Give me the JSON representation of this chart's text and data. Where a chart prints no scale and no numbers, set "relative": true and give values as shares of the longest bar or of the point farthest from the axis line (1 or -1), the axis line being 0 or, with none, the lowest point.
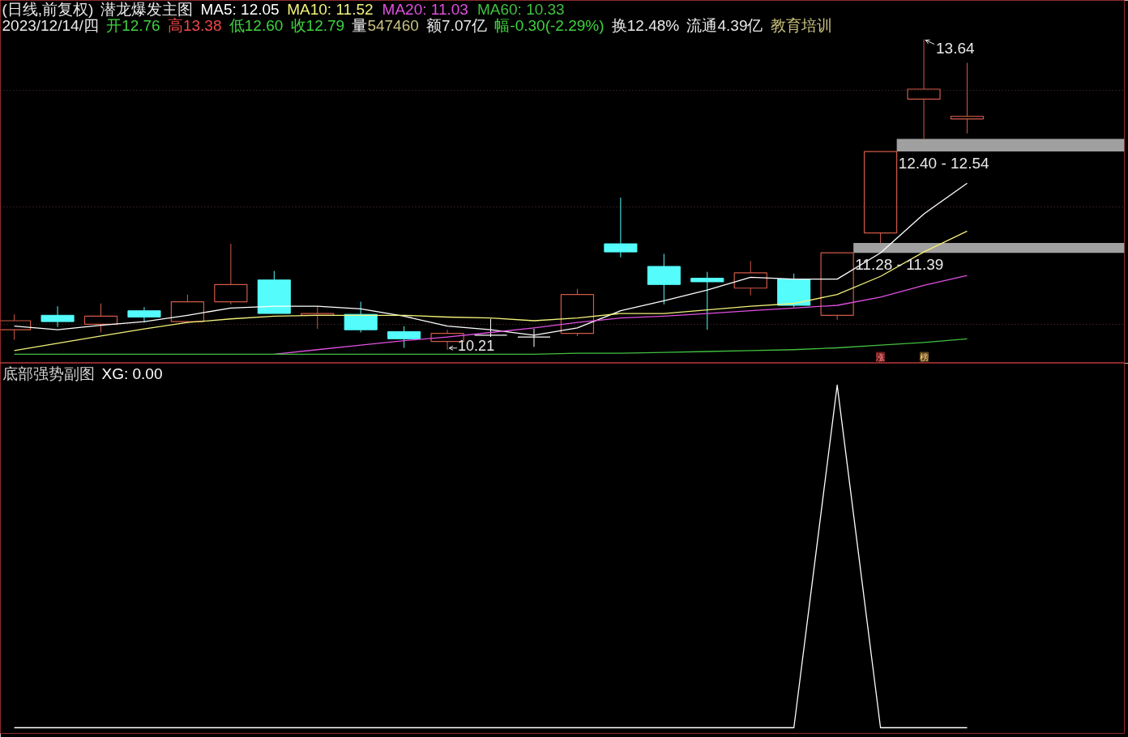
{
  "chart_data": [
    {
      "type": "candlestick",
      "title": "(日线,前复权)",
      "legend_title": "潜龙爆发主图",
      "subtitle": "2023/12/14/四 开12.76 高13.38 低12.60 收12.79 量547460 额7.07亿 幅-0.30(-2.29%) 换12.48% 流通4.39亿 教育培训",
      "categories": [
        null,
        null,
        null,
        null,
        null,
        null,
        null,
        null,
        null,
        null,
        null,
        null,
        null,
        null,
        null,
        null,
        null,
        null,
        null,
        null,
        null,
        null,
        null
      ],
      "ohlc": [
        [
          10.43,
          10.6,
          10.32,
          10.53
        ],
        [
          10.59,
          10.69,
          10.46,
          10.52
        ],
        [
          10.49,
          10.72,
          10.4,
          10.58
        ],
        [
          10.64,
          10.68,
          10.51,
          10.57
        ],
        [
          10.52,
          10.82,
          10.5,
          10.74
        ],
        [
          10.74,
          11.38,
          10.71,
          10.93
        ],
        [
          10.98,
          11.08,
          10.61,
          10.61
        ],
        [
          10.59,
          10.69,
          10.44,
          10.61
        ],
        [
          10.6,
          10.74,
          10.4,
          10.43
        ],
        [
          10.41,
          10.47,
          10.23,
          10.33
        ],
        [
          10.3,
          10.43,
          10.21,
          10.39
        ],
        [
          10.37,
          10.55,
          10.35,
          10.37
        ],
        [
          10.35,
          10.44,
          10.24,
          10.35
        ],
        [
          10.39,
          10.88,
          10.36,
          10.82
        ],
        [
          11.38,
          11.89,
          11.23,
          11.29
        ],
        [
          11.13,
          11.27,
          10.71,
          10.93
        ],
        [
          11.0,
          11.07,
          10.43,
          10.96
        ],
        [
          10.89,
          11.19,
          10.81,
          11.06
        ],
        [
          10.99,
          11.05,
          10.68,
          10.7
        ],
        [
          10.59,
          11.28,
          10.54,
          11.28
        ],
        [
          11.5,
          12.4,
          11.39,
          12.4
        ],
        [
          12.98,
          13.64,
          12.54,
          13.09
        ],
        [
          12.76,
          13.38,
          12.6,
          12.79
        ]
      ],
      "colors": [
        "#d05a48",
        "#54fcfc",
        "#d05a48",
        "#54fcfc",
        "#d05a48",
        "#d05a48",
        "#54fcfc",
        "#d05a48",
        "#54fcfc",
        "#54fcfc",
        "#d05a48",
        "#ffffff",
        "#ffffff",
        "#d05a48",
        "#54fcfc",
        "#54fcfc",
        "#54fcfc",
        "#d05a48",
        "#54fcfc",
        "#d05a48",
        "#d05a48",
        "#d05a48",
        "#d05a48"
      ],
      "series": [
        {
          "name": "MA5: 12.05",
          "type": "line",
          "color": "#ffffff",
          "values": [
            10.47,
            10.43,
            10.48,
            10.52,
            10.59,
            10.67,
            10.69,
            10.69,
            10.66,
            10.58,
            10.47,
            10.43,
            10.37,
            10.45,
            10.64,
            10.75,
            10.87,
            11.01,
            10.99,
            10.99,
            11.28,
            11.71,
            12.05
          ]
        },
        {
          "name": "MA10: 11.52",
          "type": "line",
          "color": "#f2f27a",
          "values": [
            10.2,
            10.28,
            10.36,
            10.44,
            10.51,
            10.55,
            10.58,
            10.59,
            10.59,
            10.59,
            10.57,
            10.56,
            10.53,
            10.56,
            10.61,
            10.61,
            10.65,
            10.69,
            10.72,
            10.82,
            11.02,
            11.29,
            11.52
          ]
        },
        {
          "name": "MA20: 11.03",
          "type": "line",
          "color": "#e050e0",
          "values": [
            null,
            null,
            null,
            null,
            null,
            null,
            10.16,
            10.21,
            10.26,
            10.31,
            10.35,
            10.4,
            10.45,
            10.51,
            10.56,
            10.58,
            10.61,
            10.64,
            10.67,
            10.7,
            10.79,
            10.92,
            11.03
          ]
        },
        {
          "name": "MA60: 10.33",
          "type": "line",
          "color": "#40c040",
          "values": [
            10.16,
            10.16,
            10.16,
            10.16,
            10.16,
            10.16,
            10.16,
            10.16,
            10.16,
            10.16,
            10.16,
            10.16,
            10.16,
            10.17,
            10.17,
            10.18,
            10.19,
            10.2,
            10.21,
            10.23,
            10.26,
            10.29,
            10.33
          ]
        }
      ],
      "ylim": [
        10.06,
        14.07
      ],
      "yticks": [
        {
          "value": 13.08,
          "label": null
        },
        {
          "value": 11.79,
          "label": null
        },
        {
          "value": 10.49,
          "label": null
        }
      ],
      "tick_labels": false,
      "grid": "y",
      "legend": "top",
      "bands": [
        {
          "axis": "y",
          "from": 12.4,
          "to": 12.54,
          "label": "12.40 - 12.54",
          "color": "#a0a0a0"
        },
        {
          "axis": "y",
          "from": 11.28,
          "to": 11.39,
          "label": "11.28 - 11.39",
          "color": "#a0a0a0"
        }
      ],
      "annotations": [
        "13.64",
        "10.21",
        "涨",
        "榜"
      ]
    },
    {
      "type": "line",
      "legend_title": "底部强势副图",
      "relative": true,
      "tick_labels": false,
      "legend": "top left",
      "categories": [
        null,
        null,
        null,
        null,
        null,
        null,
        null,
        null,
        null,
        null,
        null,
        null,
        null,
        null,
        null,
        null,
        null,
        null,
        null,
        null,
        null,
        null,
        null
      ],
      "series": [
        {
          "name": "XG: 0.00",
          "color": "#ffffff",
          "values": [
            0,
            0,
            0,
            0,
            0,
            0,
            0,
            0,
            0,
            0,
            0,
            0,
            0,
            0,
            0,
            0,
            0,
            0,
            0,
            1,
            0,
            0,
            0
          ]
        }
      ]
    }
  ]
}
